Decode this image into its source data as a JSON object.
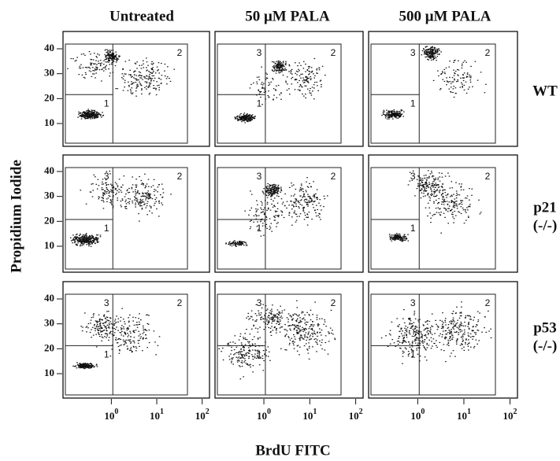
{
  "columns": [
    "Untreated",
    "50 μM PALA",
    "500 μM PALA"
  ],
  "rows": [
    {
      "label": "WT"
    },
    {
      "label": "p21",
      "sublabel": "(-/-)"
    },
    {
      "label": "p53",
      "sublabel": "(-/-)"
    }
  ],
  "y_axis": {
    "label": "Propidium Iodide",
    "ticks": [
      "40",
      "30",
      "20",
      "10"
    ]
  },
  "x_axis": {
    "label": "BrdU FITC",
    "ticks": [
      {
        "base": "10",
        "exp": "0"
      },
      {
        "base": "10",
        "exp": "1"
      },
      {
        "base": "10",
        "exp": "2"
      }
    ]
  },
  "gates": [
    "1",
    "2",
    "3"
  ]
}
